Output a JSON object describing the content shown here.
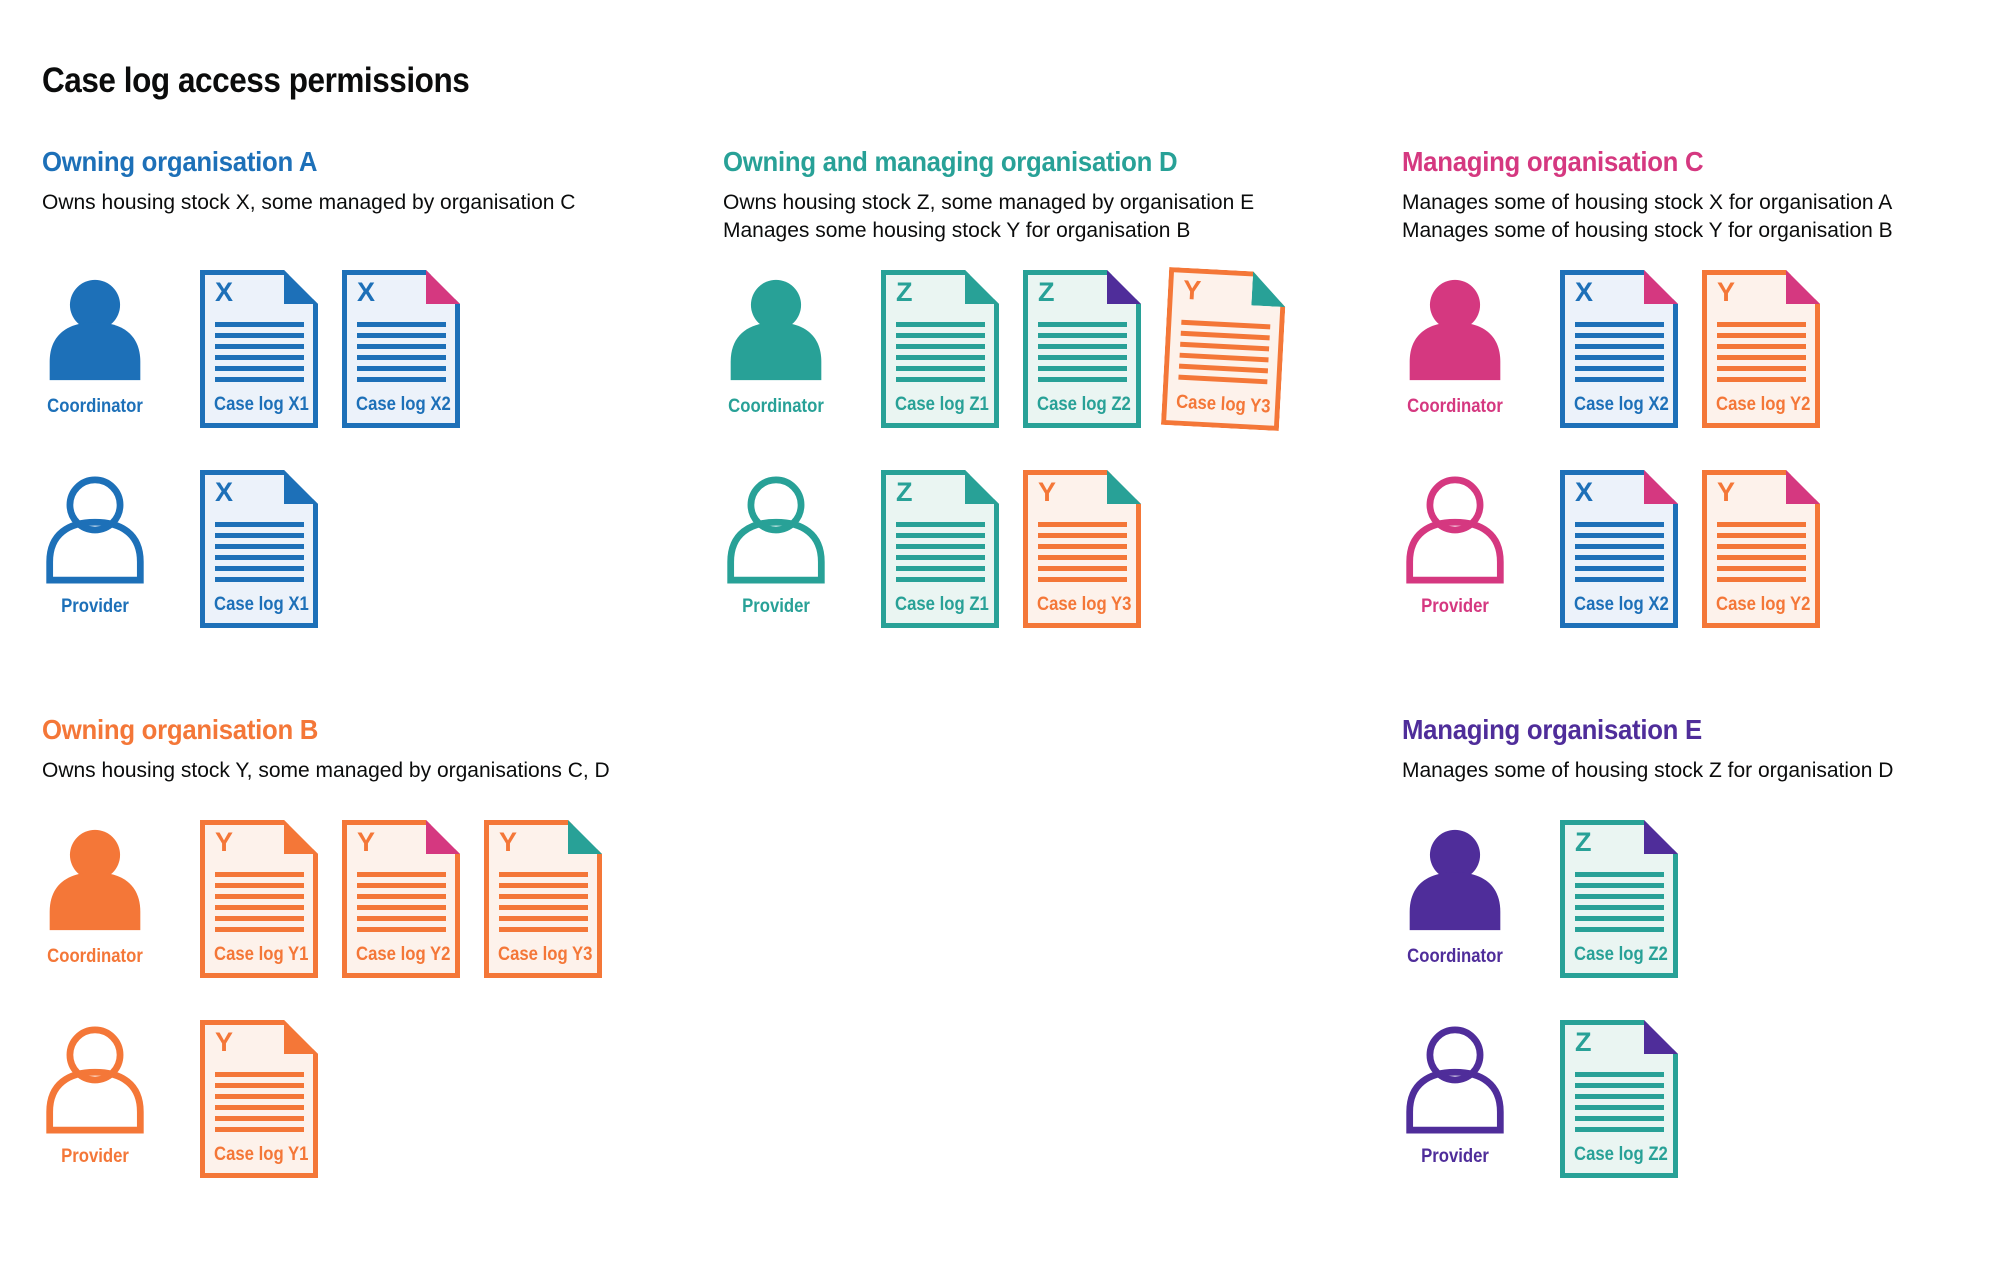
{
  "page": {
    "title": "Case log access permissions"
  },
  "roles": {
    "coordinator": "Coordinator",
    "provider": "Provider"
  },
  "colors": {
    "blue": "#1d70b8",
    "teal": "#28a197",
    "orange": "#f47738",
    "pink": "#d53880",
    "purple": "#4f2d9a",
    "text": "#0b0c0c"
  },
  "doc_schemes": {
    "blue": {
      "border": "#1d70b8",
      "background": "#ecf2fa"
    },
    "teal": {
      "border": "#28a197",
      "background": "#eaf5f2"
    },
    "orange": {
      "border": "#f47738",
      "background": "#fdf2eb"
    }
  },
  "sections": [
    {
      "id": "A",
      "color": "blue",
      "title": "Owning organisation A",
      "description": [
        "Owns housing stock X, some managed by organisation C"
      ],
      "coordinator_docs": [
        {
          "letter": "X",
          "label": "Case log X1",
          "scheme": "blue",
          "fold": "blue"
        },
        {
          "letter": "X",
          "label": "Case log X2",
          "scheme": "blue",
          "fold": "pink"
        }
      ],
      "provider_docs": [
        {
          "letter": "X",
          "label": "Case log X1",
          "scheme": "blue",
          "fold": "blue"
        }
      ]
    },
    {
      "id": "D",
      "color": "teal",
      "title": "Owning and managing organisation D",
      "description": [
        "Owns housing stock Z, some managed by organisation E",
        "Manages some housing stock Y for organisation B"
      ],
      "coordinator_docs": [
        {
          "letter": "Z",
          "label": "Case log Z1",
          "scheme": "teal",
          "fold": "teal"
        },
        {
          "letter": "Z",
          "label": "Case log Z2",
          "scheme": "teal",
          "fold": "purple"
        },
        {
          "letter": "Y",
          "label": "Case log Y3",
          "scheme": "orange",
          "fold": "teal",
          "tilt": 3
        }
      ],
      "provider_docs": [
        {
          "letter": "Z",
          "label": "Case log Z1",
          "scheme": "teal",
          "fold": "teal"
        },
        {
          "letter": "Y",
          "label": "Case log Y3",
          "scheme": "orange",
          "fold": "teal"
        }
      ]
    },
    {
      "id": "C",
      "color": "pink",
      "title": "Managing organisation C",
      "description": [
        "Manages some of housing stock X for organisation A",
        "Manages some of housing stock Y for organisation B"
      ],
      "coordinator_docs": [
        {
          "letter": "X",
          "label": "Case log X2",
          "scheme": "blue",
          "fold": "pink"
        },
        {
          "letter": "Y",
          "label": "Case log Y2",
          "scheme": "orange",
          "fold": "pink"
        }
      ],
      "provider_docs": [
        {
          "letter": "X",
          "label": "Case log X2",
          "scheme": "blue",
          "fold": "pink"
        },
        {
          "letter": "Y",
          "label": "Case log Y2",
          "scheme": "orange",
          "fold": "pink"
        }
      ]
    },
    {
      "id": "B",
      "color": "orange",
      "title": "Owning organisation B",
      "description": [
        "Owns housing stock Y, some managed by organisations C, D"
      ],
      "coordinator_docs": [
        {
          "letter": "Y",
          "label": "Case log Y1",
          "scheme": "orange",
          "fold": "orange"
        },
        {
          "letter": "Y",
          "label": "Case log Y2",
          "scheme": "orange",
          "fold": "pink"
        },
        {
          "letter": "Y",
          "label": "Case log Y3",
          "scheme": "orange",
          "fold": "teal"
        }
      ],
      "provider_docs": [
        {
          "letter": "Y",
          "label": "Case log Y1",
          "scheme": "orange",
          "fold": "orange"
        }
      ]
    },
    {
      "id": "E",
      "color": "purple",
      "title": "Managing organisation E",
      "description": [
        "Manages some of housing stock Z for organisation D"
      ],
      "coordinator_docs": [
        {
          "letter": "Z",
          "label": "Case log Z2",
          "scheme": "teal",
          "fold": "purple"
        }
      ],
      "provider_docs": [
        {
          "letter": "Z",
          "label": "Case log Z2",
          "scheme": "teal",
          "fold": "purple"
        }
      ]
    }
  ]
}
